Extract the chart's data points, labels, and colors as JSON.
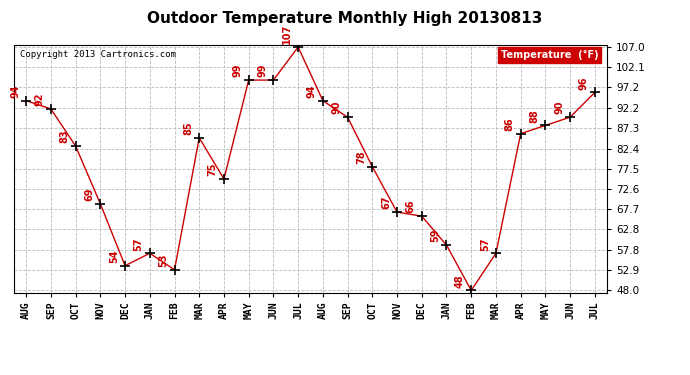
{
  "title": "Outdoor Temperature Monthly High 20130813",
  "copyright": "Copyright 2013 Cartronics.com",
  "legend_label": "Temperature  (°F)",
  "x_labels": [
    "AUG",
    "SEP",
    "OCT",
    "NOV",
    "DEC",
    "JAN",
    "FEB",
    "MAR",
    "APR",
    "MAY",
    "JUN",
    "JUL",
    "AUG",
    "SEP",
    "OCT",
    "NOV",
    "DEC",
    "JAN",
    "FEB",
    "MAR",
    "APR",
    "MAY",
    "JUN",
    "JUL"
  ],
  "y_values": [
    94,
    92,
    83,
    69,
    54,
    57,
    53,
    85,
    75,
    99,
    99,
    107,
    94,
    90,
    78,
    67,
    66,
    59,
    48,
    57,
    86,
    88,
    90,
    96
  ],
  "y_min": 48.0,
  "y_max": 107.0,
  "y_ticks": [
    48.0,
    52.9,
    57.8,
    62.8,
    67.7,
    72.6,
    77.5,
    82.4,
    87.3,
    92.2,
    97.2,
    102.1,
    107.0
  ],
  "line_color": "#cc0000",
  "marker": "+",
  "marker_size": 7,
  "bg_color": "#ffffff",
  "plot_bg_color": "#ffffff",
  "grid_color": "#bbbbbb",
  "title_fontsize": 11,
  "label_fontsize": 7,
  "annot_fontsize": 7,
  "legend_bg": "#cc0000",
  "legend_fg": "#ffffff"
}
